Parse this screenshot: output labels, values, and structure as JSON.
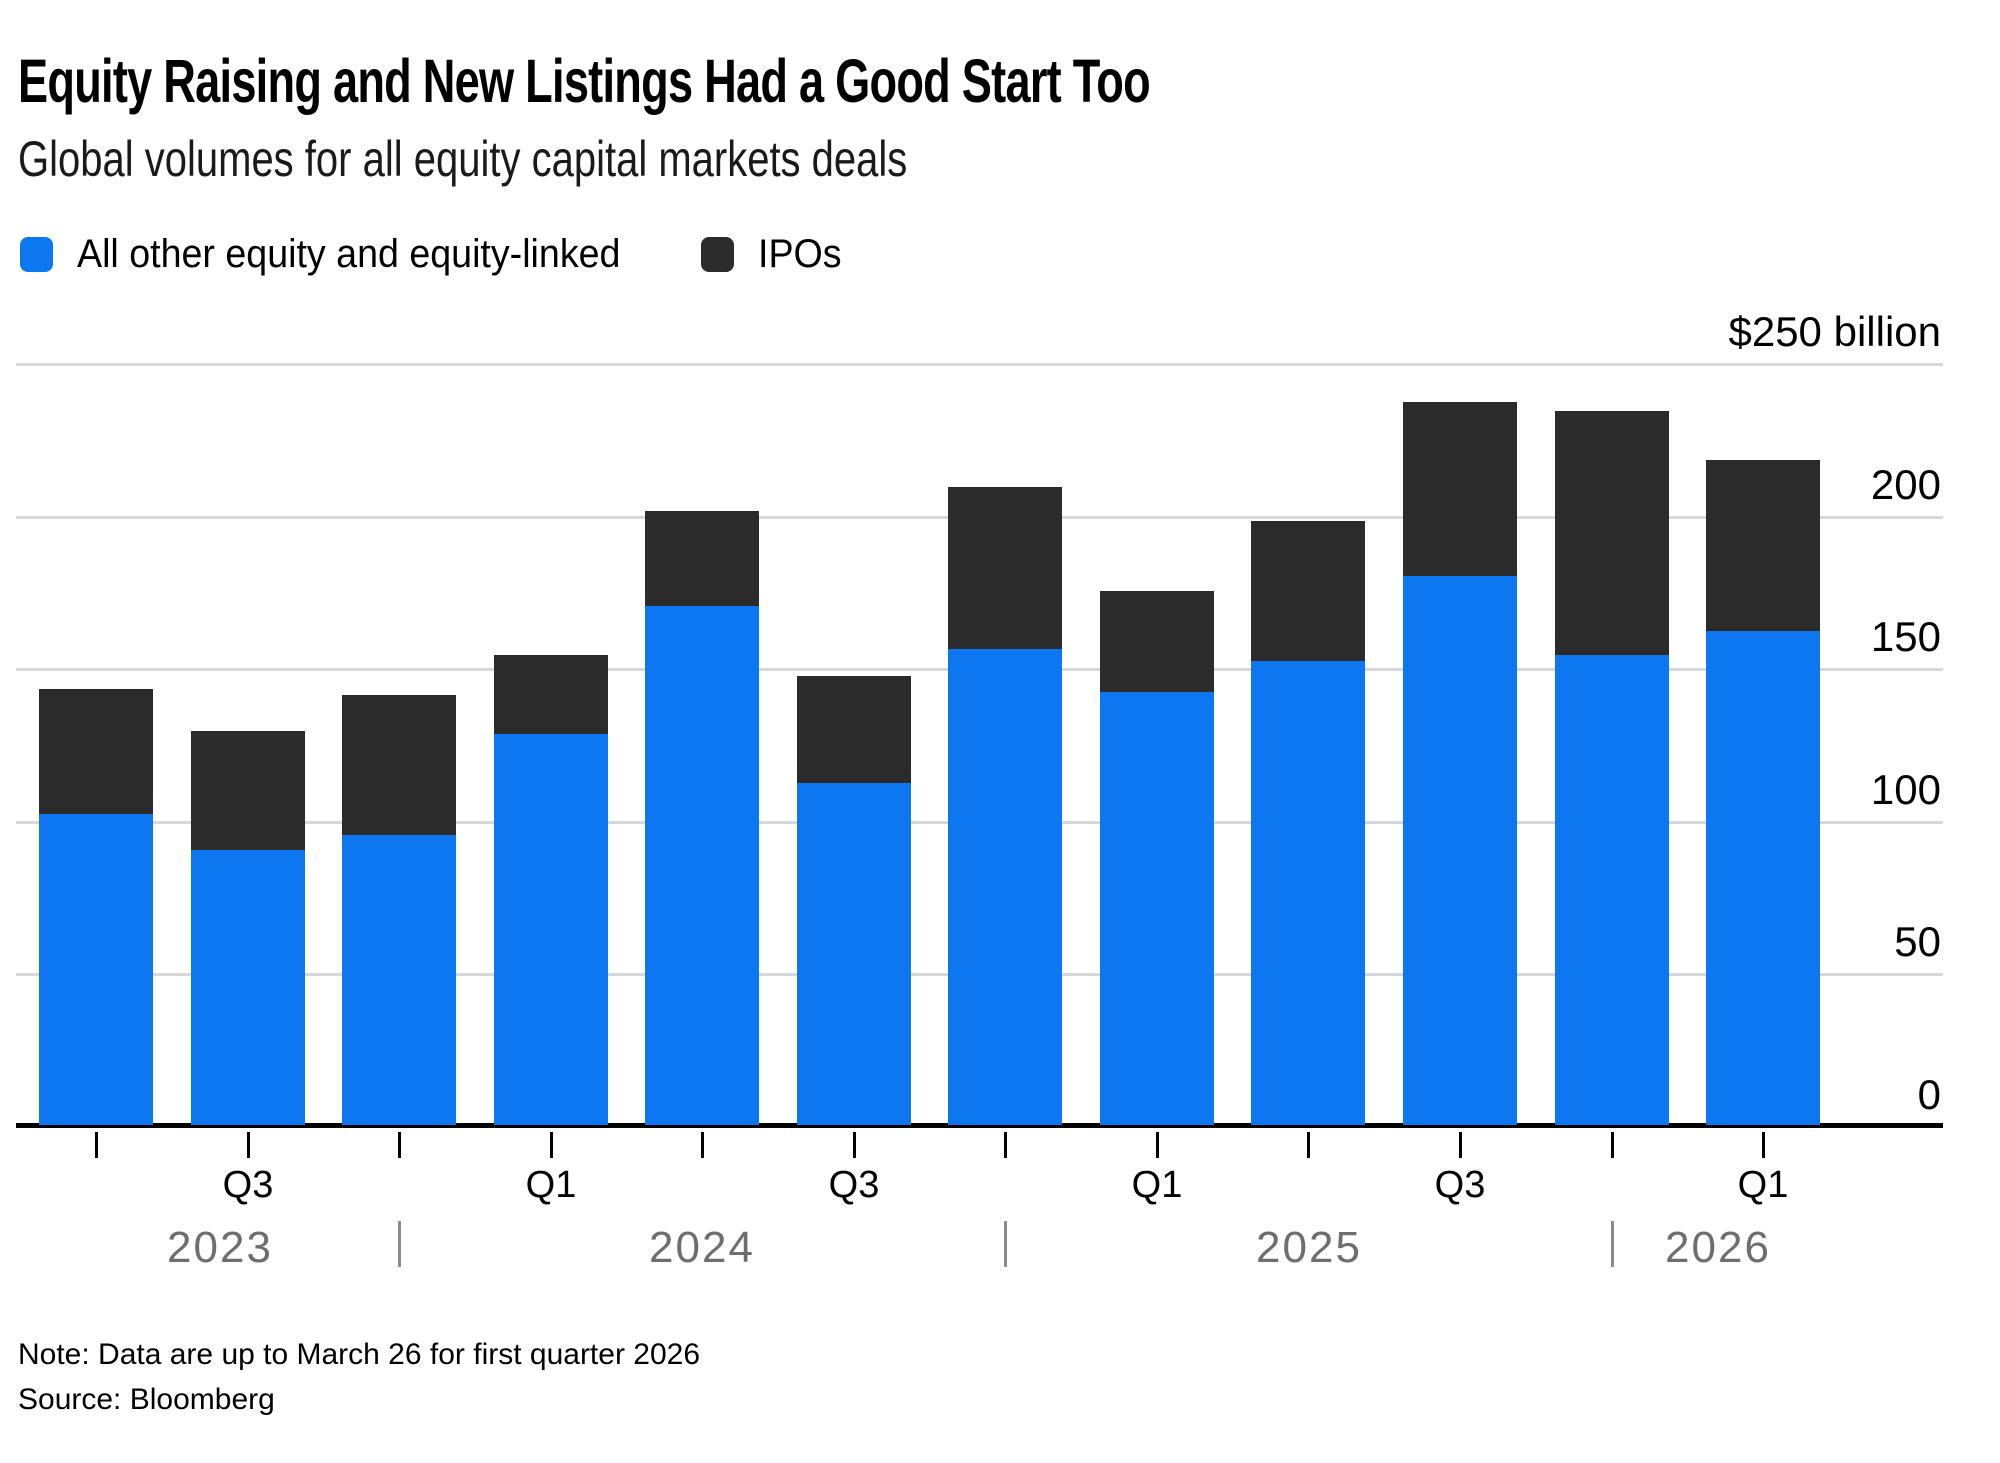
{
  "title": "Equity Raising and New Listings Had a Good Start Too",
  "subtitle": "Global volumes for all equity capital markets deals",
  "note": "Note: Data are up to March 26 for first quarter 2026",
  "source": "Source: Bloomberg",
  "chart_data": {
    "type": "bar",
    "stacked": true,
    "unit": "USD billion",
    "title": "Equity Raising and New Listings Had a Good Start Too",
    "subtitle": "Global volumes for all equity capital markets deals",
    "categories": [
      "Q2 2023",
      "Q3 2023",
      "Q4 2023",
      "Q1 2024",
      "Q2 2024",
      "Q3 2024",
      "Q4 2024",
      "Q1 2025",
      "Q2 2025",
      "Q3 2025",
      "Q4 2025",
      "Q1 2026"
    ],
    "x_tick_labels": [
      "",
      "Q3",
      "",
      "Q1",
      "",
      "Q3",
      "",
      "Q1",
      "",
      "Q3",
      "",
      "Q1"
    ],
    "years": [
      "2023",
      "2024",
      "2025",
      "2026"
    ],
    "series": [
      {
        "name": "All other equity and equity-linked",
        "color": "#0d77f2",
        "values": [
          102,
          90,
          95,
          128,
          170,
          112,
          156,
          142,
          152,
          180,
          154,
          162
        ]
      },
      {
        "name": "IPOs",
        "color": "#2b2b2b",
        "values": [
          41,
          39,
          46,
          26,
          31,
          35,
          53,
          33,
          46,
          57,
          80,
          56
        ]
      }
    ],
    "ylim": [
      0,
      250
    ],
    "y_ticks": [
      250,
      200,
      150,
      100,
      50,
      0
    ],
    "y_top_label": "$250 billion",
    "grid": "horizontal",
    "legend_position": "top-left"
  }
}
